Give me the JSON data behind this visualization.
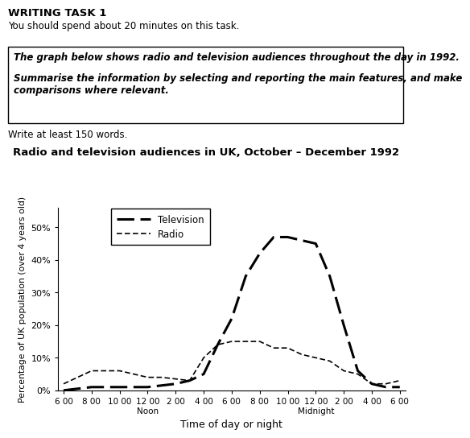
{
  "title": "Radio and television audiences in UK, October – December 1992",
  "xlabel": "Time of day or night",
  "ylabel": "Percentage of UK population (over 4 years old)",
  "writing_task_header": "WRITING TASK 1",
  "writing_task_subtext": "You should spend about 20 minutes on this task.",
  "box_text_line1": "The graph below shows radio and television audiences throughout the day in 1992.",
  "box_text_line2": "Summarise the information by selecting and reporting the main features, and make\ncomparisons where relevant.",
  "footnote": "Write at least 150 words.",
  "x_tick_labels": [
    "6 00",
    "8 00",
    "10 00",
    "12 00\nNoon",
    "2 00",
    "4 00",
    "6 00",
    "8 00",
    "10 00",
    "12 00\nMidnight",
    "2 00",
    "4 00",
    "6 00"
  ],
  "ylim": [
    0,
    56
  ],
  "yticks": [
    0,
    10,
    20,
    30,
    40,
    50
  ],
  "ytick_labels": [
    "0%",
    "10%",
    "20%",
    "30%",
    "40%",
    "50%"
  ],
  "television_x": [
    0,
    0.5,
    1,
    1.5,
    2,
    2.5,
    3,
    3.5,
    4,
    4.5,
    5,
    5.5,
    6,
    6.5,
    7,
    7.5,
    8,
    8.5,
    9,
    9.5,
    10,
    10.5,
    11,
    11.5,
    12
  ],
  "television_y": [
    0,
    0.5,
    1,
    1,
    1,
    1,
    1,
    1.5,
    2,
    3,
    5,
    14,
    22,
    35,
    42,
    47,
    47,
    46,
    45,
    35,
    20,
    6,
    2,
    1,
    1
  ],
  "radio_x": [
    0,
    0.5,
    1,
    1.5,
    2,
    2.5,
    3,
    3.5,
    4,
    4.5,
    5,
    5.5,
    6,
    6.5,
    7,
    7.5,
    8,
    8.5,
    9,
    9.5,
    10,
    10.5,
    11,
    11.5,
    12
  ],
  "radio_y": [
    2,
    4,
    6,
    6,
    6,
    5,
    4,
    4,
    3.5,
    3,
    10,
    14,
    15,
    15,
    15,
    13,
    13,
    11,
    10,
    9,
    6,
    5,
    2,
    2,
    3
  ],
  "tv_color": "#000000",
  "radio_color": "#000000",
  "background_color": "#ffffff"
}
